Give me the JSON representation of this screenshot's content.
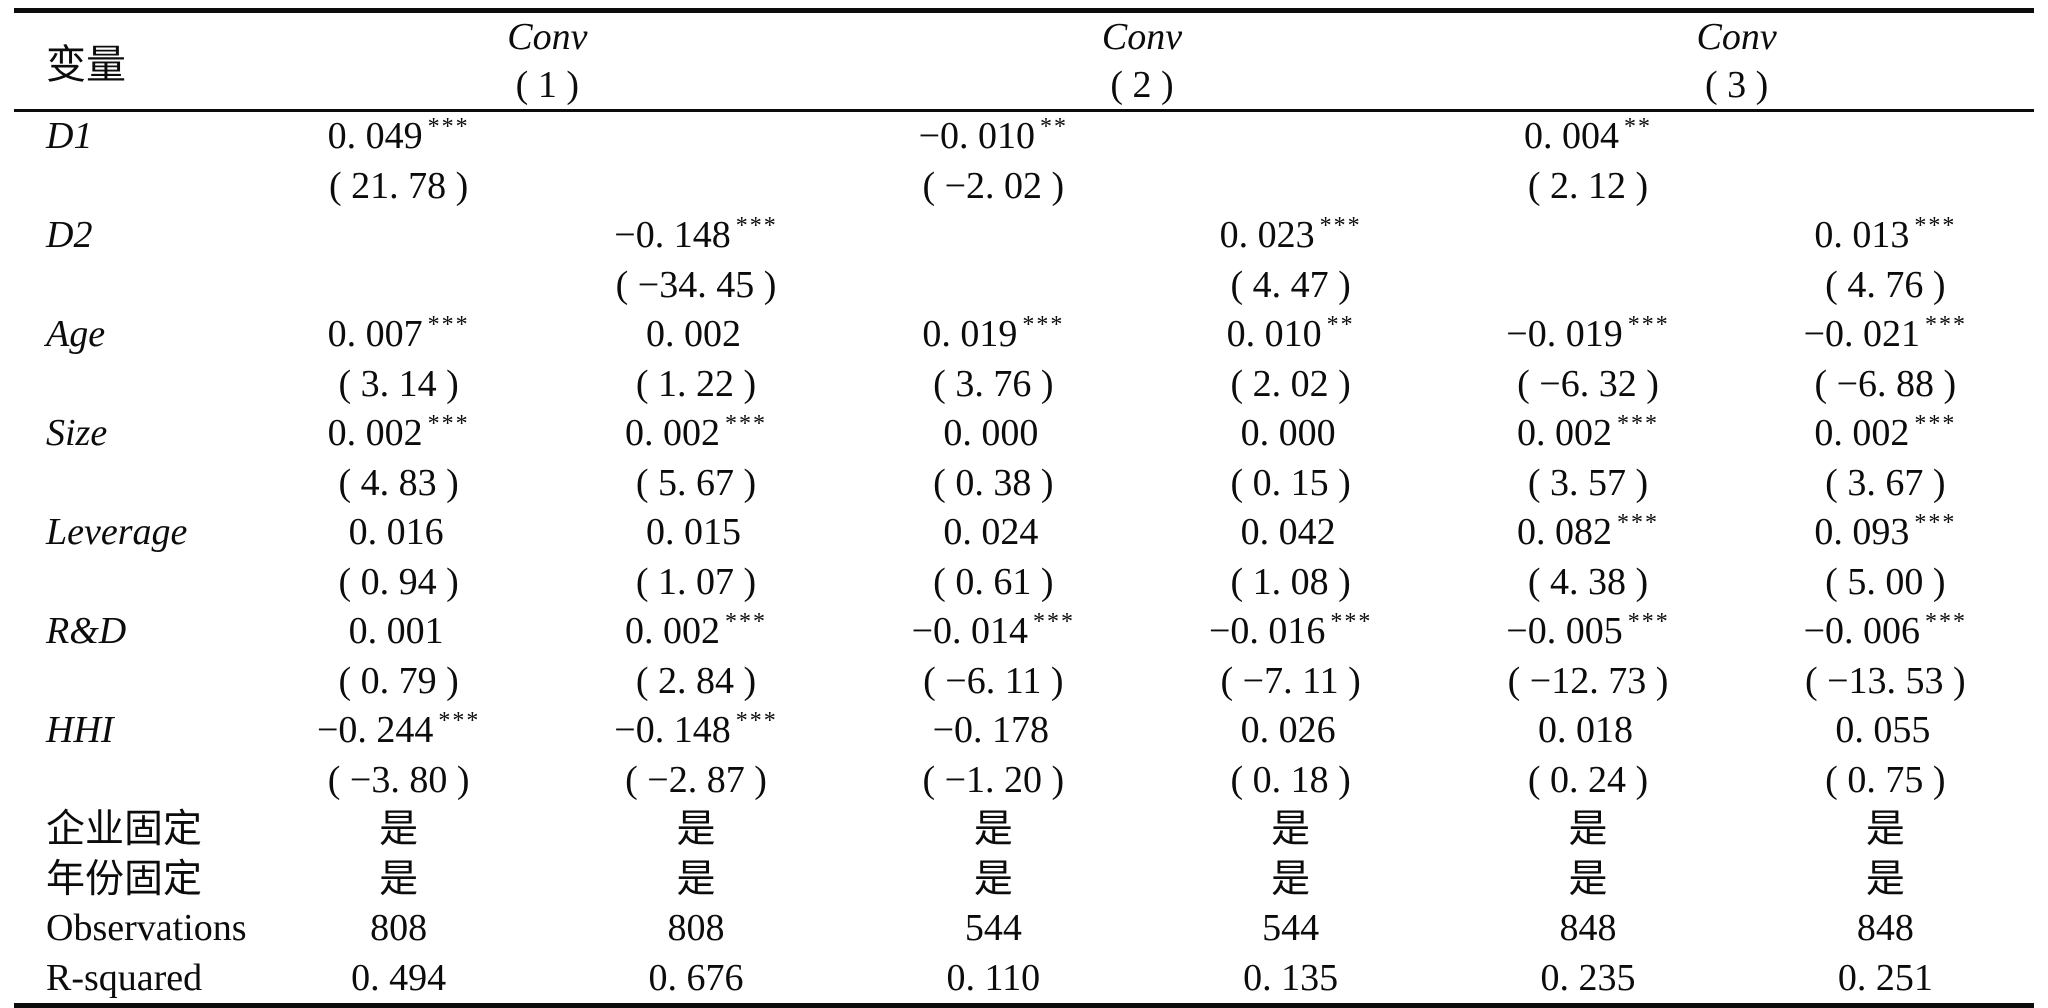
{
  "table": {
    "header": {
      "var_col": "变量",
      "groups": [
        {
          "name": "Conv",
          "number": "( 1 )"
        },
        {
          "name": "Conv",
          "number": "( 2 )"
        },
        {
          "name": "Conv",
          "number": "( 3 )"
        }
      ]
    },
    "rows": [
      {
        "label": "D1",
        "cells": [
          {
            "coef": "0. 049",
            "stars": "***",
            "t": "( 21. 78 )"
          },
          {
            "coef": "",
            "stars": "",
            "t": ""
          },
          {
            "coef": "−0. 010",
            "stars": "**",
            "t": "( −2. 02 )"
          },
          {
            "coef": "",
            "stars": "",
            "t": ""
          },
          {
            "coef": "0. 004",
            "stars": "**",
            "t": "( 2. 12 )"
          },
          {
            "coef": "",
            "stars": "",
            "t": ""
          }
        ]
      },
      {
        "label": "D2",
        "cells": [
          {
            "coef": "",
            "stars": "",
            "t": ""
          },
          {
            "coef": "−0. 148",
            "stars": "***",
            "t": "( −34. 45 )"
          },
          {
            "coef": "",
            "stars": "",
            "t": ""
          },
          {
            "coef": "0. 023",
            "stars": "***",
            "t": "( 4. 47 )"
          },
          {
            "coef": "",
            "stars": "",
            "t": ""
          },
          {
            "coef": "0. 013",
            "stars": "***",
            "t": "( 4. 76 )"
          }
        ]
      },
      {
        "label": "Age",
        "cells": [
          {
            "coef": "0. 007",
            "stars": "***",
            "t": "( 3. 14 )"
          },
          {
            "coef": "0. 002",
            "stars": "",
            "t": "( 1. 22 )"
          },
          {
            "coef": "0. 019",
            "stars": "***",
            "t": "( 3. 76 )"
          },
          {
            "coef": "0. 010",
            "stars": "**",
            "t": "( 2. 02 )"
          },
          {
            "coef": "−0. 019",
            "stars": "***",
            "t": "( −6. 32 )"
          },
          {
            "coef": "−0. 021",
            "stars": "***",
            "t": "( −6. 88 )"
          }
        ]
      },
      {
        "label": "Size",
        "cells": [
          {
            "coef": "0. 002",
            "stars": "***",
            "t": "( 4. 83 )"
          },
          {
            "coef": "0. 002",
            "stars": "***",
            "t": "( 5. 67 )"
          },
          {
            "coef": "0. 000",
            "stars": "",
            "t": "( 0. 38 )"
          },
          {
            "coef": "0. 000",
            "stars": "",
            "t": "( 0. 15 )"
          },
          {
            "coef": "0. 002",
            "stars": "***",
            "t": "( 3. 57 )"
          },
          {
            "coef": "0. 002",
            "stars": "***",
            "t": "( 3. 67 )"
          }
        ]
      },
      {
        "label": "Leverage",
        "cells": [
          {
            "coef": "0. 016",
            "stars": "",
            "t": "( 0. 94 )"
          },
          {
            "coef": "0. 015",
            "stars": "",
            "t": "( 1. 07 )"
          },
          {
            "coef": "0. 024",
            "stars": "",
            "t": "( 0. 61 )"
          },
          {
            "coef": "0. 042",
            "stars": "",
            "t": "( 1. 08 )"
          },
          {
            "coef": "0. 082",
            "stars": "***",
            "t": "( 4. 38 )"
          },
          {
            "coef": "0. 093",
            "stars": "***",
            "t": "( 5. 00 )"
          }
        ]
      },
      {
        "label": "R&D",
        "cells": [
          {
            "coef": "0. 001",
            "stars": "",
            "t": "( 0. 79 )"
          },
          {
            "coef": "0. 002",
            "stars": "***",
            "t": "( 2. 84 )"
          },
          {
            "coef": "−0. 014",
            "stars": "***",
            "t": "( −6. 11 )"
          },
          {
            "coef": "−0. 016",
            "stars": "***",
            "t": "( −7. 11 )"
          },
          {
            "coef": "−0. 005",
            "stars": "***",
            "t": "( −12. 73 )"
          },
          {
            "coef": "−0. 006",
            "stars": "***",
            "t": "( −13. 53 )"
          }
        ]
      },
      {
        "label": "HHI",
        "cells": [
          {
            "coef": "−0. 244",
            "stars": "***",
            "t": "( −3. 80 )"
          },
          {
            "coef": "−0. 148",
            "stars": "***",
            "t": "( −2. 87 )"
          },
          {
            "coef": "−0. 178",
            "stars": "",
            "t": "( −1. 20 )"
          },
          {
            "coef": "0. 026",
            "stars": "",
            "t": "( 0. 18 )"
          },
          {
            "coef": "0. 018",
            "stars": "",
            "t": "( 0. 24 )"
          },
          {
            "coef": "0. 055",
            "stars": "",
            "t": "( 0. 75 )"
          }
        ]
      }
    ],
    "summary_rows": [
      {
        "label": "企业固定",
        "values": [
          "是",
          "是",
          "是",
          "是",
          "是",
          "是"
        ]
      },
      {
        "label": "年份固定",
        "values": [
          "是",
          "是",
          "是",
          "是",
          "是",
          "是"
        ]
      },
      {
        "label": "Observations",
        "values": [
          "808",
          "808",
          "544",
          "544",
          "848",
          "848"
        ]
      },
      {
        "label": "R-squared",
        "values": [
          "0. 494",
          "0. 676",
          "0. 110",
          "0. 135",
          "0. 235",
          "0. 251"
        ]
      }
    ]
  }
}
